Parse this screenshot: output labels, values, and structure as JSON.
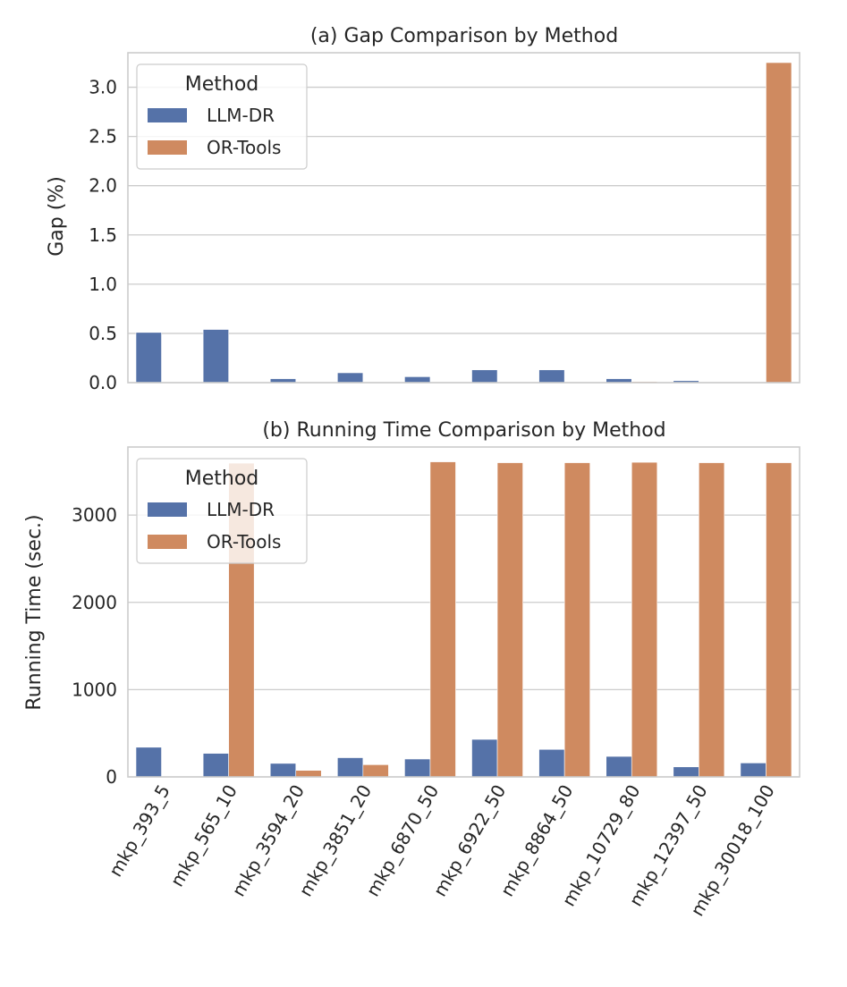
{
  "chart_data": [
    {
      "type": "bar",
      "title": "(a) Gap Comparison by Method",
      "xlabel": "",
      "ylabel": "Gap (%)",
      "ylim": [
        0,
        3.35
      ],
      "yticks": [
        "0.0",
        "0.5",
        "1.0",
        "1.5",
        "2.0",
        "2.5",
        "3.0"
      ],
      "ytick_values": [
        0,
        0.5,
        1.0,
        1.5,
        2.0,
        2.5,
        3.0
      ],
      "grid": true,
      "legend": {
        "title": "Method",
        "placement": "top-left"
      },
      "categories": [
        "mkp_393_5",
        "mkp_565_10",
        "mkp_3594_20",
        "mkp_3851_20",
        "mkp_6870_50",
        "mkp_6922_50",
        "mkp_8864_50",
        "mkp_10729_80",
        "mkp_12397_50",
        "mkp_30018_100"
      ],
      "series": [
        {
          "name": "LLM-DR",
          "color": "#5572a8",
          "values": [
            0.51,
            0.54,
            0.04,
            0.1,
            0.06,
            0.13,
            0.13,
            0.04,
            0.02,
            0.0
          ]
        },
        {
          "name": "OR-Tools",
          "color": "#cf8a60",
          "values": [
            0.0,
            0.0,
            0.0,
            0.0,
            0.0,
            0.0,
            0.0,
            0.01,
            0.0,
            3.25
          ]
        }
      ]
    },
    {
      "type": "bar",
      "title": "(b) Running Time Comparison by Method",
      "xlabel": "",
      "ylabel": "Running Time (sec.)",
      "ylim": [
        0,
        3780
      ],
      "yticks": [
        "0",
        "1000",
        "2000",
        "3000"
      ],
      "ytick_values": [
        0,
        1000,
        2000,
        3000
      ],
      "grid": true,
      "legend": {
        "title": "Method",
        "placement": "top-left"
      },
      "categories": [
        "mkp_393_5",
        "mkp_565_10",
        "mkp_3594_20",
        "mkp_3851_20",
        "mkp_6870_50",
        "mkp_6922_50",
        "mkp_8864_50",
        "mkp_10729_80",
        "mkp_12397_50",
        "mkp_30018_100"
      ],
      "series": [
        {
          "name": "LLM-DR",
          "color": "#5572a8",
          "values": [
            340,
            270,
            155,
            220,
            205,
            430,
            315,
            235,
            115,
            160
          ]
        },
        {
          "name": "OR-Tools",
          "color": "#cf8a60",
          "values": [
            0,
            3595,
            75,
            140,
            3610,
            3600,
            3600,
            3605,
            3600,
            3600
          ]
        }
      ]
    }
  ]
}
